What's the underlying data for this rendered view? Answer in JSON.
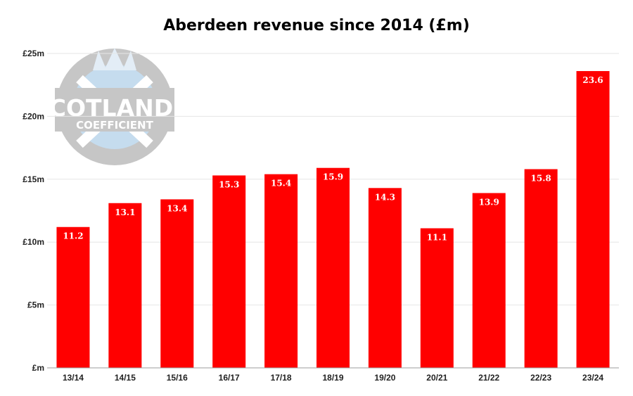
{
  "title": "Aberdeen revenue since 2014 (£m)",
  "watermark": {
    "line1": "SCOTLAND'S",
    "line2": "COEFFICIENT"
  },
  "colors": {
    "bar": "#ff0000",
    "grid": "#e6e6e6",
    "axis": "#9e9e9e",
    "watermark_gray": "#bdbdbd",
    "watermark_blue": "#bcd6ec"
  },
  "chart_data": {
    "type": "bar",
    "title": "Aberdeen revenue since 2014 (£m)",
    "xlabel": "",
    "ylabel": "",
    "categories": [
      "13/14",
      "14/15",
      "15/16",
      "16/17",
      "17/18",
      "18/19",
      "19/20",
      "20/21",
      "21/22",
      "22/23",
      "23/24"
    ],
    "values": [
      11.2,
      13.1,
      13.4,
      15.3,
      15.4,
      15.9,
      14.3,
      11.1,
      13.9,
      15.8,
      23.6
    ],
    "data_labels": [
      "11.2",
      "13.1",
      "13.4",
      "15.3",
      "15.4",
      "15.9",
      "14.3",
      "11.1",
      "13.9",
      "15.8",
      "23.6"
    ],
    "ylim": [
      0,
      25
    ],
    "yticks": [
      0,
      5,
      10,
      15,
      20,
      25
    ],
    "ytick_labels": [
      "£m",
      "£5m",
      "£10m",
      "£15m",
      "£20m",
      "£25m"
    ],
    "grid": true,
    "legend": "none"
  }
}
